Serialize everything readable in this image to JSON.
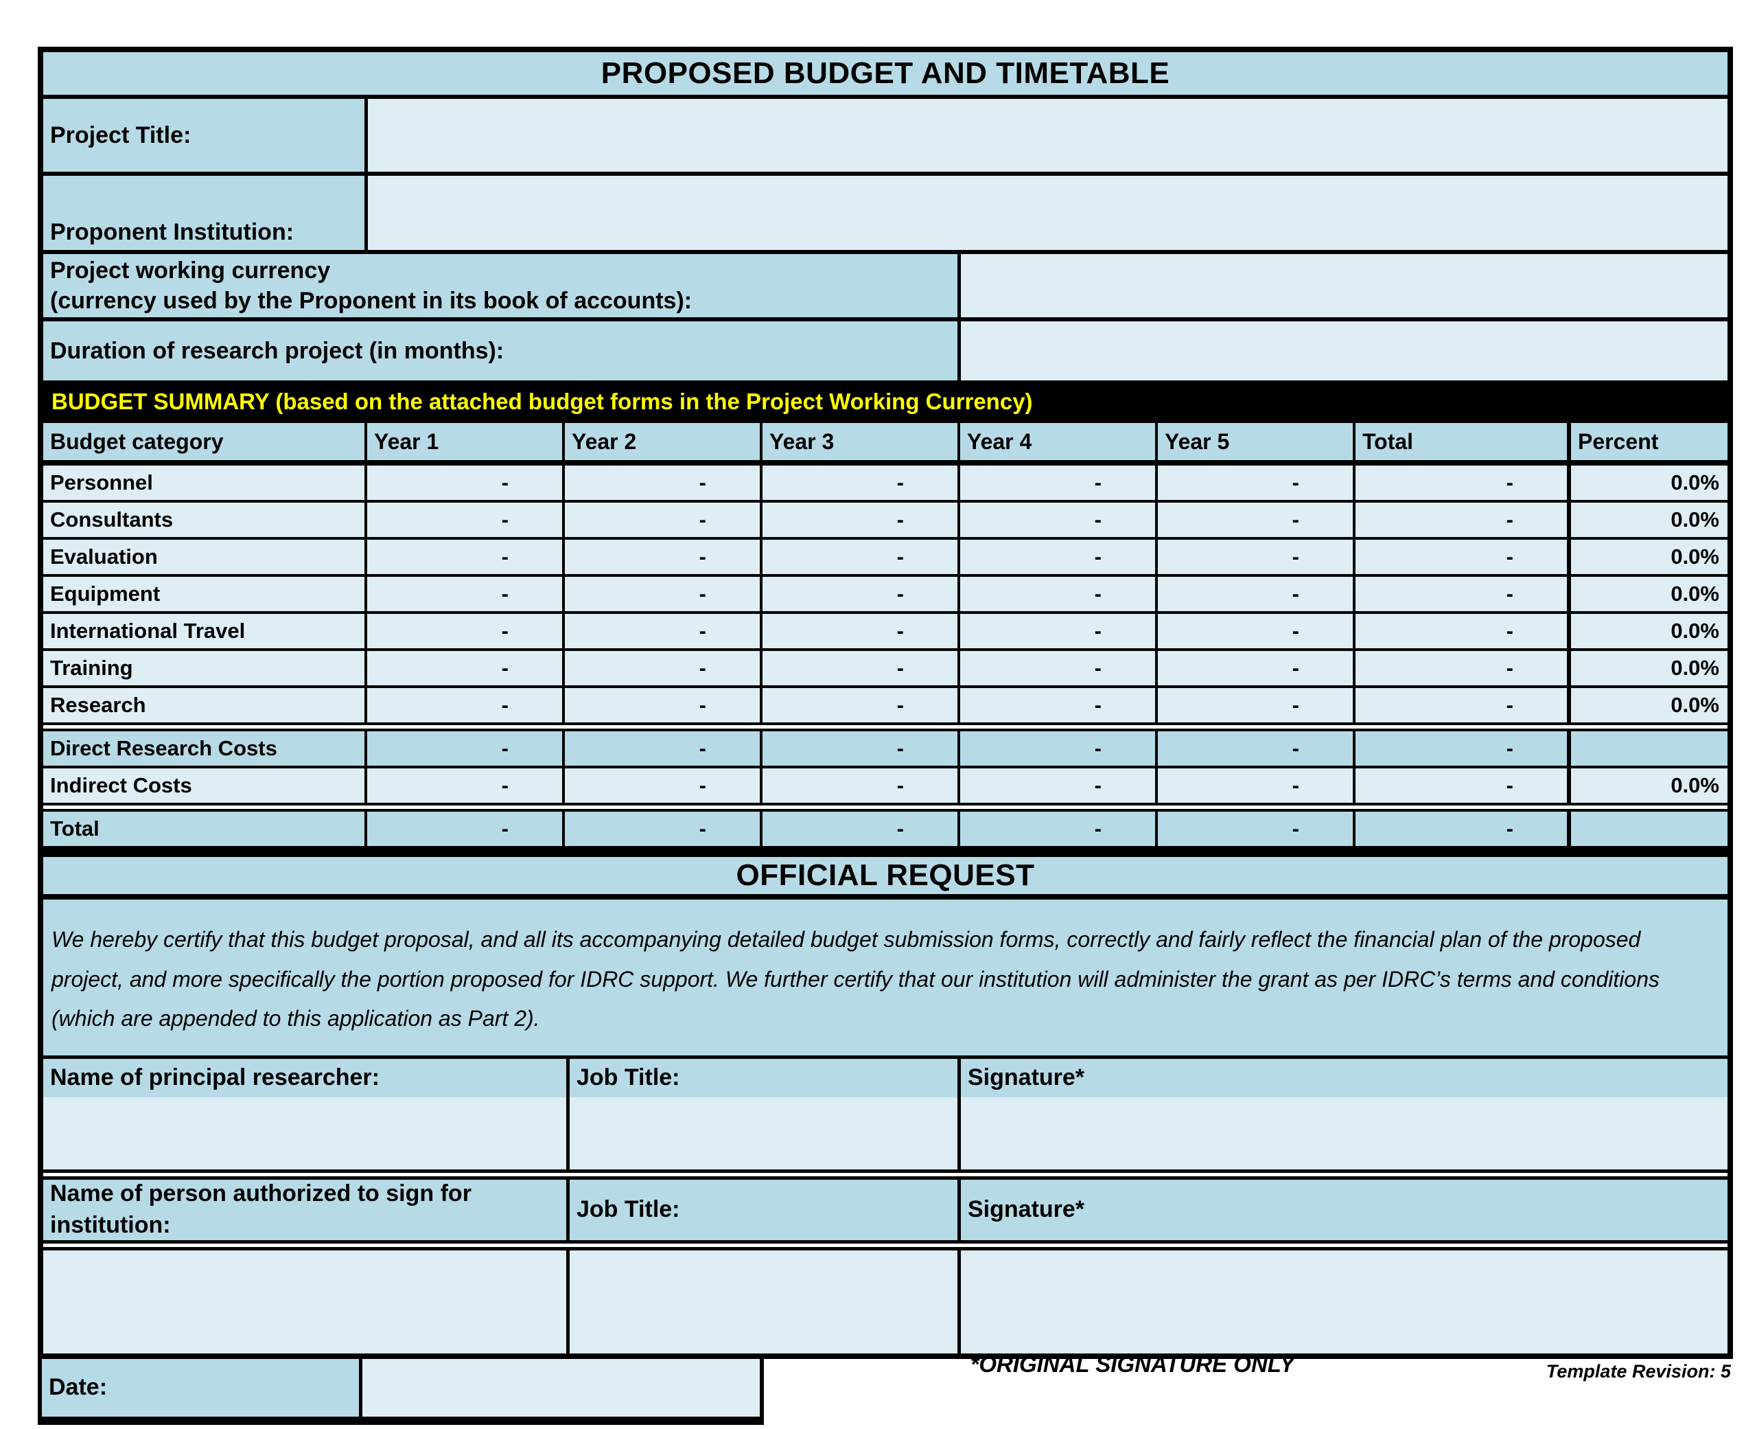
{
  "form": {
    "title": "PROPOSED BUDGET AND TIMETABLE",
    "project_title_label": "Project Title:",
    "project_title_value": "",
    "proponent_label": "Proponent Institution:",
    "proponent_value": "",
    "currency_label_line1": "Project working currency",
    "currency_label_line2": "(currency used by the Proponent in its book of accounts):",
    "currency_value": "",
    "duration_label": "Duration of research project (in months):",
    "duration_value": ""
  },
  "budget": {
    "section_header": "BUDGET SUMMARY (based on the attached budget forms in the Project Working Currency)",
    "columns": [
      "Budget category",
      "Year 1",
      "Year 2",
      "Year 3",
      "Year 4",
      "Year 5",
      "Total",
      "Percent"
    ],
    "rows": [
      {
        "label": "Personnel",
        "values": [
          "-",
          "-",
          "-",
          "-",
          "-",
          "-"
        ],
        "percent": "0.0%"
      },
      {
        "label": "Consultants",
        "values": [
          "-",
          "-",
          "-",
          "-",
          "-",
          "-"
        ],
        "percent": "0.0%"
      },
      {
        "label": "Evaluation",
        "values": [
          "-",
          "-",
          "-",
          "-",
          "-",
          "-"
        ],
        "percent": "0.0%"
      },
      {
        "label": "Equipment",
        "values": [
          "-",
          "-",
          "-",
          "-",
          "-",
          "-"
        ],
        "percent": "0.0%"
      },
      {
        "label": "International Travel",
        "values": [
          "-",
          "-",
          "-",
          "-",
          "-",
          "-"
        ],
        "percent": "0.0%"
      },
      {
        "label": "Training",
        "values": [
          "-",
          "-",
          "-",
          "-",
          "-",
          "-"
        ],
        "percent": "0.0%"
      },
      {
        "label": "Research",
        "values": [
          "-",
          "-",
          "-",
          "-",
          "-",
          "-"
        ],
        "percent": "0.0%"
      },
      {
        "label": "Direct Research Costs",
        "values": [
          "-",
          "-",
          "-",
          "-",
          "-",
          "-"
        ],
        "percent": ""
      },
      {
        "label": "Indirect Costs",
        "values": [
          "-",
          "-",
          "-",
          "-",
          "-",
          "-"
        ],
        "percent": "0.0%"
      },
      {
        "label": "Total",
        "values": [
          "-",
          "-",
          "-",
          "-",
          "-",
          "-"
        ],
        "percent": ""
      }
    ]
  },
  "official_request": {
    "title": "OFFICIAL REQUEST",
    "certification": "We hereby certify that this budget proposal, and all its accompanying detailed budget submission forms, correctly and fairly reflect the financial plan of the proposed project, and more specifically the portion proposed for IDRC support. We further certify that our institution will administer the grant as per IDRC’s terms and conditions (which are appended to this application as Part 2).",
    "researcher_row": {
      "name_label": "Name of principal researcher:",
      "job_label": "Job Title:",
      "sig_label": "Signature*"
    },
    "authorized_row": {
      "name_label": "Name of person authorized to sign for institution:",
      "job_label": "Job Title:",
      "sig_label": "Signature*"
    },
    "date_label": "Date:",
    "date_value": ""
  },
  "footer": {
    "original_signature_note": "*ORIGINAL SIGNATURE ONLY",
    "template_revision": "Template Revision: 5"
  },
  "colors": {
    "cell_dark": "#b7dbe6",
    "cell_light": "#deeef4",
    "section_bar_bg": "#000000",
    "section_bar_text": "#ffff00",
    "border": "#000000"
  }
}
